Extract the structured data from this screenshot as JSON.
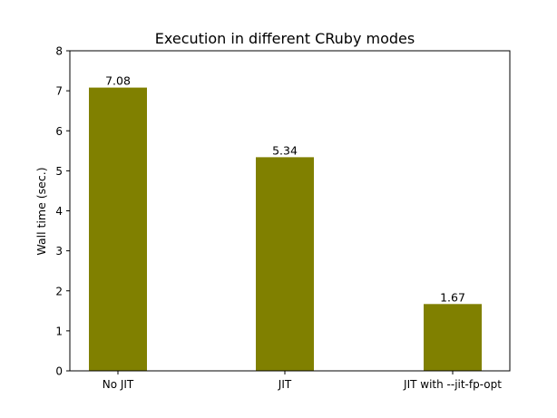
{
  "chart_data": {
    "type": "bar",
    "title": "Execution in different CRuby modes",
    "xlabel": "",
    "ylabel": "Wall time (sec.)",
    "categories": [
      "No JIT",
      "JIT",
      "JIT with --jit-fp-opt"
    ],
    "values": [
      7.08,
      5.34,
      1.67
    ],
    "data_labels": [
      "7.08",
      "5.34",
      "1.67"
    ],
    "ylim": [
      0,
      8
    ],
    "yticks": [
      "0",
      "1",
      "2",
      "3",
      "4",
      "5",
      "6",
      "7",
      "8"
    ],
    "bar_color": "#808000",
    "grid": false,
    "legend": "none"
  }
}
